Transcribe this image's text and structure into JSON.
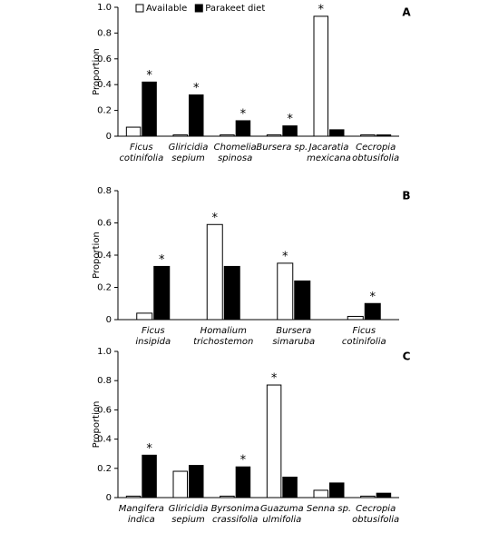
{
  "chart_data": [
    {
      "type": "bar",
      "label": "A",
      "ylabel": "Proportion",
      "ylim": [
        0,
        1
      ],
      "yticks": [
        0,
        0.2,
        0.4,
        0.6,
        0.8,
        {
          "value": 1,
          "label": "1.0"
        }
      ],
      "asterisk_text": "*",
      "edgecolor": "#000000",
      "categories": [
        [
          "Ficus",
          "cotinifolia"
        ],
        [
          "Gliricidia",
          "sepium"
        ],
        [
          "Chomelia",
          "spinosa"
        ],
        [
          "Bursera sp."
        ],
        [
          "Jacaratia",
          "mexicana"
        ],
        [
          "Cecropia",
          "obtusifolia"
        ]
      ],
      "series": [
        {
          "name": "Available",
          "color": "#ffffff",
          "values": [
            0.07,
            0.01,
            0.01,
            0.01,
            0.93,
            0.01
          ],
          "asterisk": [
            false,
            false,
            false,
            false,
            true,
            false
          ]
        },
        {
          "name": "Parakeet diet",
          "color": "#000000",
          "values": [
            0.42,
            0.32,
            0.12,
            0.08,
            0.05,
            0.01
          ],
          "asterisk": [
            true,
            true,
            true,
            true,
            false,
            false
          ]
        }
      ]
    },
    {
      "type": "bar",
      "label": "B",
      "ylabel": "Proportion",
      "ylim": [
        0,
        0.8
      ],
      "yticks": [
        0,
        0.2,
        0.4,
        0.6,
        0.8
      ],
      "asterisk_text": "*",
      "edgecolor": "#000000",
      "categories": [
        [
          "Ficus",
          "insipida"
        ],
        [
          "Homalium",
          "trichostemon"
        ],
        [
          "Bursera",
          "simaruba"
        ],
        [
          "Ficus",
          "cotinifolia"
        ]
      ],
      "series": [
        {
          "color": "#ffffff",
          "values": [
            0.04,
            0.59,
            0.35,
            0.02
          ],
          "asterisk": [
            false,
            true,
            true,
            false
          ]
        },
        {
          "color": "#000000",
          "values": [
            0.33,
            0.33,
            0.24,
            0.1
          ],
          "asterisk": [
            true,
            false,
            false,
            true
          ]
        }
      ]
    },
    {
      "type": "bar",
      "label": "C",
      "ylabel": "Proportion",
      "ylim": [
        0,
        1
      ],
      "yticks": [
        0,
        0.2,
        0.4,
        0.6,
        0.8,
        {
          "value": 1,
          "label": "1.0"
        }
      ],
      "asterisk_text": "*",
      "edgecolor": "#000000",
      "categories": [
        [
          "Mangifera",
          "indica"
        ],
        [
          "Gliricidia",
          "sepium"
        ],
        [
          "Byrsonima",
          "crassifolia"
        ],
        [
          "Guazuma",
          "ulmifolia"
        ],
        [
          "Senna sp."
        ],
        [
          "Cecropia",
          "obtusifolia"
        ]
      ],
      "series": [
        {
          "color": "#ffffff",
          "values": [
            0.01,
            0.18,
            0.01,
            0.77,
            0.05,
            0.01
          ],
          "asterisk": [
            false,
            false,
            false,
            true,
            false,
            false
          ]
        },
        {
          "color": "#000000",
          "values": [
            0.29,
            0.22,
            0.21,
            0.14,
            0.1,
            0.03
          ],
          "asterisk": [
            true,
            false,
            true,
            false,
            false,
            false
          ]
        }
      ]
    }
  ]
}
